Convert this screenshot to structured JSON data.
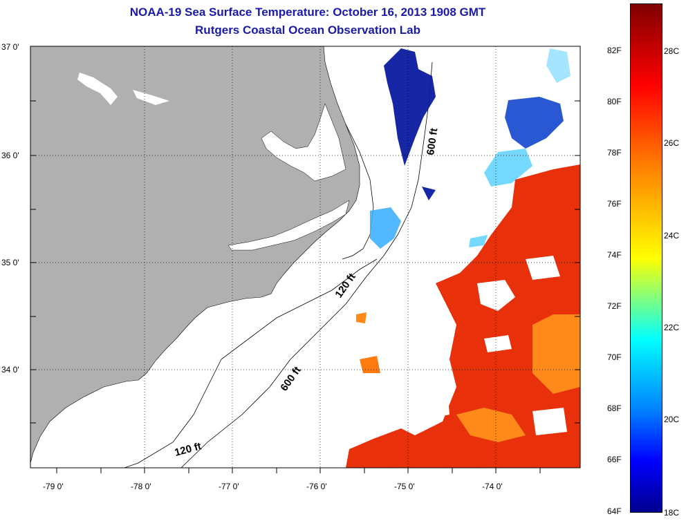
{
  "title": {
    "line1": "NOAA-19 Sea Surface Temperature:  October 16, 2013 1908 GMT",
    "line2": "Rutgers Coastal Ocean Observation Lab"
  },
  "map": {
    "lat_labels": [
      "37 0'",
      "36 0'",
      "35 0'",
      "34 0'"
    ],
    "lon_labels": [
      "-79 0'",
      "-78 0'",
      "-77 0'",
      "-76 0'",
      "-75 0'",
      "-74 0'"
    ],
    "contours": {
      "c1": "600 ft",
      "c2": "120 ft",
      "c3": "600 ft",
      "c4": "120 ft"
    }
  },
  "colorbar": {
    "fahrenheit": [
      "82F",
      "80F",
      "78F",
      "76F",
      "74F",
      "72F",
      "70F",
      "68F",
      "66F",
      "64F"
    ],
    "celsius": [
      "28C",
      "26C",
      "24C",
      "22C",
      "20C",
      "18C"
    ],
    "range_c": [
      18,
      29
    ]
  },
  "colors": {
    "title": "#1a1aa8",
    "land": "#b0b0b0",
    "warm": "#e8300a",
    "cold": "#0a1aa0"
  }
}
